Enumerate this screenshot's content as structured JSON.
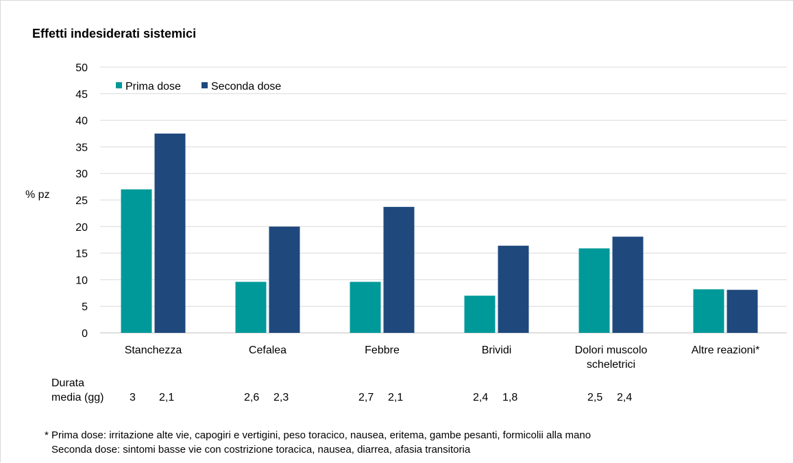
{
  "chart_data": {
    "type": "bar",
    "title": "Effetti indesiderati sistemici",
    "ylabel": "% pz",
    "xlabel": "",
    "ylim": [
      0,
      50
    ],
    "yticks": [
      0,
      5,
      10,
      15,
      20,
      25,
      30,
      35,
      40,
      45,
      50
    ],
    "grid": true,
    "legend_position": "top-left",
    "categories": [
      [
        "Stanchezza"
      ],
      [
        "Cefalea"
      ],
      [
        "Febbre"
      ],
      [
        "Brividi"
      ],
      [
        "Dolori muscolo",
        "scheletrici"
      ],
      [
        "Altre reazioni*"
      ]
    ],
    "series": [
      {
        "name": "Prima dose",
        "color": "#009999",
        "values": [
          27,
          9.6,
          9.6,
          7,
          15.9,
          8.2
        ]
      },
      {
        "name": "Seconda dose",
        "color": "#1f497d",
        "values": [
          37.5,
          20,
          23.7,
          16.4,
          18.1,
          8.1
        ]
      }
    ]
  },
  "durata": {
    "label_line1": "Durata",
    "label_line2": "media (gg)",
    "values": [
      [
        "3",
        "2,1"
      ],
      [
        "2,6",
        "2,3"
      ],
      [
        "2,7",
        "2,1"
      ],
      [
        "2,4",
        "1,8"
      ],
      [
        "2,5",
        "2,4"
      ]
    ]
  },
  "footnote": {
    "line1": "* Prima dose: irritazione alte vie, capogiri e vertigini, peso toracico, nausea, eritema, gambe pesanti, formicolii alla mano",
    "line2": "Seconda dose: sintomi basse vie con costrizione toracica, nausea, diarrea, afasia transitoria"
  }
}
